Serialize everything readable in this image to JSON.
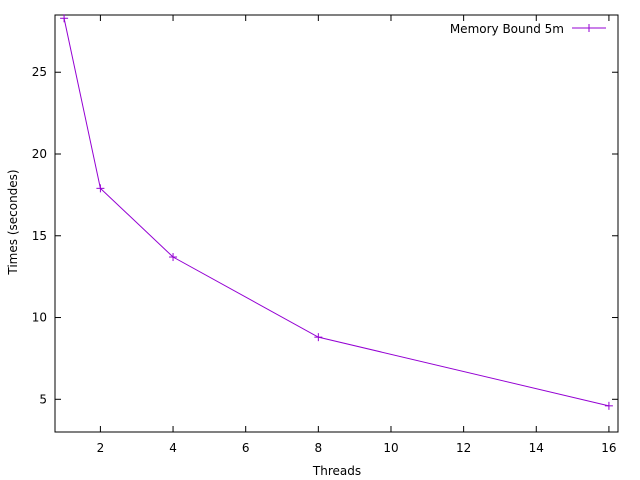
{
  "chart_data": {
    "type": "line",
    "title": "",
    "xlabel": "Threads",
    "ylabel": "Times (secondes)",
    "xlim": [
      0.75,
      16.25
    ],
    "ylim": [
      3,
      28.5
    ],
    "x_ticks": [
      2,
      4,
      6,
      8,
      10,
      12,
      14,
      16
    ],
    "y_ticks": [
      5,
      10,
      15,
      20,
      25
    ],
    "grid": false,
    "legend_position": "top-right",
    "series": [
      {
        "name": "Memory Bound 5m",
        "color": "#9400d3",
        "marker": "plus",
        "x": [
          1,
          2,
          4,
          8,
          16
        ],
        "y": [
          28.3,
          17.9,
          13.7,
          8.8,
          4.6
        ]
      }
    ]
  }
}
